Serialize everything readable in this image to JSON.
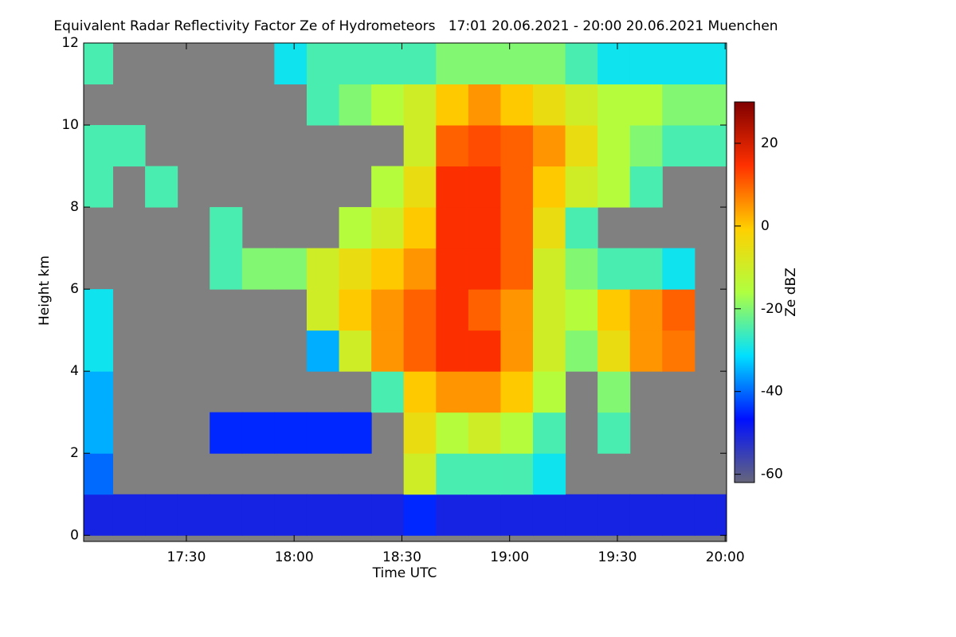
{
  "chart_data": {
    "type": "heatmap",
    "title": "Equivalent Radar Reflectivity Factor Ze of Hydrometeors   17:01 20.06.2021 - 20:00 20.06.2021 Muenchen",
    "xlabel": "Time UTC",
    "ylabel": "Height km",
    "colorbar_label": "Ze dBZ",
    "background": "#808080",
    "xlim": [
      1021.4,
      1200.4
    ],
    "xticks": [
      {
        "value": 1050,
        "label": "17:30"
      },
      {
        "value": 1080,
        "label": "18:00"
      },
      {
        "value": 1110,
        "label": "18:30"
      },
      {
        "value": 1140,
        "label": "19:00"
      },
      {
        "value": 1170,
        "label": "19:30"
      },
      {
        "value": 1200,
        "label": "20:00"
      }
    ],
    "ylim": [
      -0.15,
      12
    ],
    "yticks": [
      0,
      2,
      4,
      6,
      8,
      10,
      12
    ],
    "clim": [
      -62,
      30
    ],
    "cticks": [
      20,
      0,
      -20,
      -40,
      -60
    ],
    "colormap": [
      "#66667a",
      "#0010ff",
      "#00e0ff",
      "#b0ff40",
      "#ffd000",
      "#ff3000",
      "#800000"
    ],
    "x": [
      1025,
      1034,
      1043,
      1052,
      1061,
      1070,
      1079,
      1088,
      1097,
      1106,
      1115,
      1124,
      1133,
      1142,
      1151,
      1160,
      1169,
      1178,
      1187,
      1196
    ],
    "y": [
      0.5,
      1.5,
      2.5,
      3.5,
      4.5,
      5.5,
      6.5,
      7.5,
      8.5,
      9.5,
      10.5,
      11.5
    ],
    "values": [
      [
        -50,
        -50,
        -50,
        -50,
        -50,
        -50,
        -50,
        -50,
        -50,
        -50,
        -45,
        -50,
        -50,
        -50,
        -50,
        -50,
        -50,
        -50,
        -50,
        -50
      ],
      [
        -40,
        null,
        null,
        null,
        null,
        null,
        null,
        null,
        null,
        null,
        -10,
        -25,
        -25,
        -25,
        -30,
        null,
        null,
        null,
        null,
        null
      ],
      [
        -35,
        null,
        null,
        null,
        -45,
        -45,
        -45,
        -45,
        -45,
        null,
        -5,
        -15,
        -10,
        -15,
        -25,
        null,
        -25,
        null,
        null,
        null
      ],
      [
        -35,
        null,
        null,
        null,
        null,
        null,
        null,
        null,
        null,
        -25,
        0,
        5,
        5,
        0,
        -15,
        null,
        -20,
        null,
        null,
        null
      ],
      [
        -30,
        null,
        null,
        null,
        null,
        null,
        null,
        -35,
        -10,
        5,
        10,
        15,
        15,
        5,
        -10,
        -20,
        -5,
        5,
        8,
        null
      ],
      [
        -30,
        null,
        null,
        null,
        null,
        null,
        null,
        -10,
        0,
        5,
        10,
        15,
        10,
        5,
        -10,
        -15,
        0,
        5,
        10,
        null
      ],
      [
        null,
        null,
        null,
        null,
        -25,
        -20,
        -20,
        -10,
        -5,
        0,
        5,
        15,
        15,
        10,
        -10,
        -20,
        -25,
        -25,
        -30,
        null
      ],
      [
        null,
        null,
        null,
        null,
        -25,
        null,
        null,
        null,
        -15,
        -10,
        0,
        15,
        15,
        10,
        -5,
        -25,
        null,
        null,
        null,
        null
      ],
      [
        -25,
        null,
        -25,
        null,
        null,
        null,
        null,
        null,
        null,
        -15,
        -5,
        15,
        15,
        10,
        0,
        -10,
        -15,
        -25,
        null,
        null
      ],
      [
        -25,
        -25,
        null,
        null,
        null,
        null,
        null,
        null,
        null,
        null,
        -10,
        10,
        12,
        10,
        5,
        -5,
        -15,
        -20,
        -25,
        -25
      ],
      [
        null,
        null,
        null,
        null,
        null,
        null,
        null,
        -25,
        -20,
        -15,
        -10,
        0,
        5,
        0,
        -5,
        -10,
        -15,
        -15,
        -20,
        -20
      ],
      [
        -25,
        null,
        null,
        null,
        null,
        null,
        -30,
        -25,
        -25,
        -25,
        -25,
        -20,
        -20,
        -20,
        -20,
        -25,
        -30,
        -30,
        -30,
        -30
      ]
    ]
  }
}
